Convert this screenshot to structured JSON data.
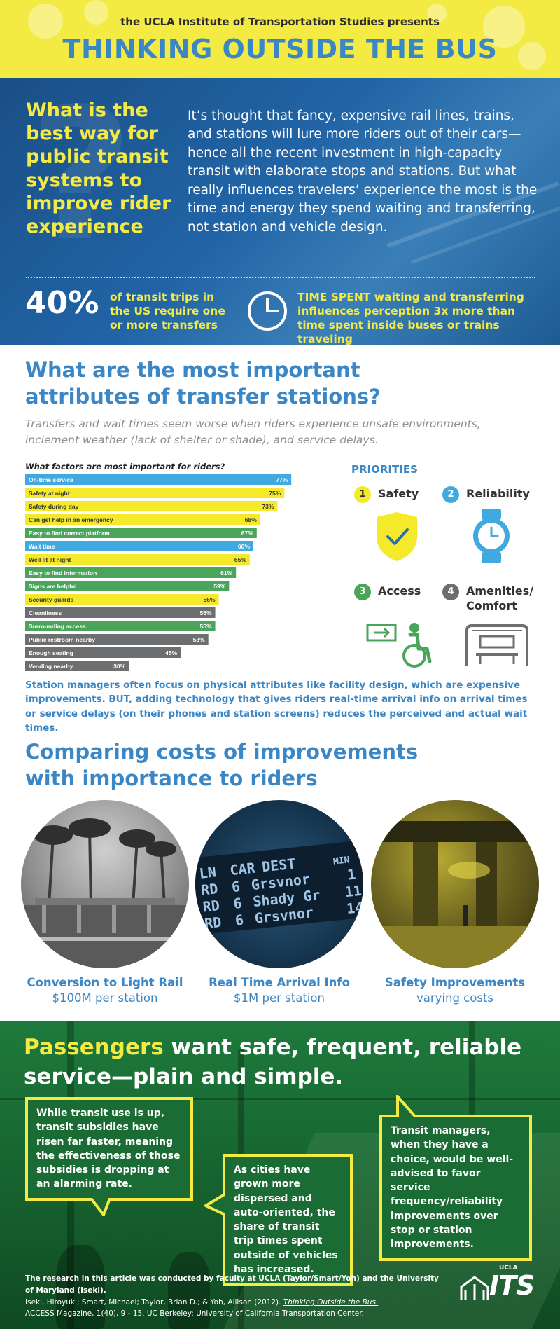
{
  "header": {
    "presents": "the UCLA Institute of Transportation Studies presents",
    "title": "THINKING OUTSIDE THE BUS"
  },
  "intro": {
    "question": "What is the best way for public transit systems to improve rider experience",
    "lead": "It’s thought that fancy, expensive rail lines, trains, and stations will lure more riders out of their cars—hence all the recent investment in high-capacity transit with elaborate stops and stations. But what really influences travelers’ experience the most is the time and energy they spend waiting and transferring, not station and vehicle design.",
    "stat_value": "40%",
    "stat_text": "of transit trips in the US require one or more transfers",
    "time_text": "TIME SPENT waiting and transferring influences perception 3x more than time spent inside buses or trains traveling",
    "clock_icon": "clock-icon"
  },
  "attributes": {
    "heading": "What are the most important attributes of transfer stations?",
    "subheading": "Transfers and wait times seem worse when riders experience unsafe environments, inclement weather (lack of shelter or shade), and service delays.",
    "chart_title": "What factors are most important for riders?",
    "note": "Station managers often focus on physical attributes like facility design, which are expensive improvements. BUT, adding technology that gives riders real-time arrival info on arrival times or service delays (on their phones and station screens) reduces the perceived and actual wait times."
  },
  "chart_data": {
    "type": "bar",
    "orientation": "horizontal",
    "title": "What factors are most important for riders?",
    "unit": "%",
    "categories": [
      "On-time service",
      "Safety at night",
      "Safety during day",
      "Can get help in an emergency",
      "Easy to find correct platform",
      "Wait time",
      "Well lit at night",
      "Easy to find information",
      "Signs are helpful",
      "Security guards",
      "Cleanliness",
      "Surrounding access",
      "Public restroom nearby",
      "Enough seating",
      "Vending nearby"
    ],
    "values": [
      77,
      75,
      73,
      68,
      67,
      66,
      65,
      61,
      59,
      56,
      55,
      55,
      53,
      45,
      30
    ],
    "labels": [
      "77%",
      "75%",
      "73%",
      "68%",
      "67%",
      "66%",
      "65%",
      "61%",
      "59%",
      "56%",
      "55%",
      "55%",
      "53%",
      "45%",
      "30%"
    ],
    "groups": [
      "reliability",
      "safety",
      "safety",
      "safety",
      "access",
      "reliability",
      "safety",
      "access",
      "access",
      "safety",
      "amenities",
      "access",
      "amenities",
      "amenities",
      "amenities"
    ],
    "colors": {
      "reliability": "#3fa9e0",
      "safety": "#f4ea2a",
      "access": "#4aa55b",
      "amenities": "#6d6e70"
    },
    "xlim": [
      0,
      80
    ]
  },
  "priorities": {
    "title": "PRIORITIES",
    "items": [
      {
        "num": "1",
        "label": "Safety",
        "color": "#f4ea2a",
        "icon": "shield-check-icon"
      },
      {
        "num": "2",
        "label": "Reliability",
        "color": "#3fa9e0",
        "icon": "watch-icon"
      },
      {
        "num": "3",
        "label": "Access",
        "color": "#4aa55b",
        "icon": "wheelchair-access-icon"
      },
      {
        "num": "4",
        "label": "Amenities/ Comfort",
        "color": "#6d6e70",
        "icon": "shelter-bench-icon"
      }
    ]
  },
  "costs": {
    "heading": "Comparing costs of improvements with importance to riders",
    "items": [
      {
        "title": "Conversion to Light Rail",
        "cost": "$100M per station"
      },
      {
        "title": "Real Time Arrival Info",
        "cost": "$1M per station"
      },
      {
        "title": "Safety Improvements",
        "cost": "varying costs"
      }
    ],
    "display": {
      "header": [
        "LN",
        "CAR",
        "DEST",
        "MIN"
      ],
      "rows": [
        [
          "RD",
          "6",
          "Grsvnor",
          "1"
        ],
        [
          "RD",
          "6",
          "Shady Gr",
          "11"
        ],
        [
          "RD",
          "6",
          "Grsvnor",
          "14"
        ]
      ]
    }
  },
  "passengers": {
    "heading_highlight": "Passengers",
    "heading_rest": " want safe, frequent, reliable service—plain and simple.",
    "box1": "While transit use is up, transit subsidies have risen far faster, meaning the effectiveness of those subsidies is dropping at an alarming rate.",
    "box2": "As cities have grown more dispersed and auto-oriented, the share of transit trip times spent outside of vehicles has increased.",
    "box3": "Transit managers, when they have a choice, would be well-advised to favor service frequency/reliability improvements over stop or station improvements."
  },
  "credits": {
    "line1": "The research in this article was conducted by faculty at UCLA (Taylor/Smart/Yoh) and the University of Maryland (Iseki).",
    "line2_pre": "Iseki, Hiroyuki; Smart, Michael; Taylor, Brian D.; & Yoh, Allison (2012). ",
    "line2_title": "Thinking Outside the Bus.",
    "line3": "ACCESS Magazine, 1(40), 9 - 15. UC Berkeley: University of California Transportation Center.",
    "logo_small": "UCLA",
    "logo_word": "ITS"
  }
}
